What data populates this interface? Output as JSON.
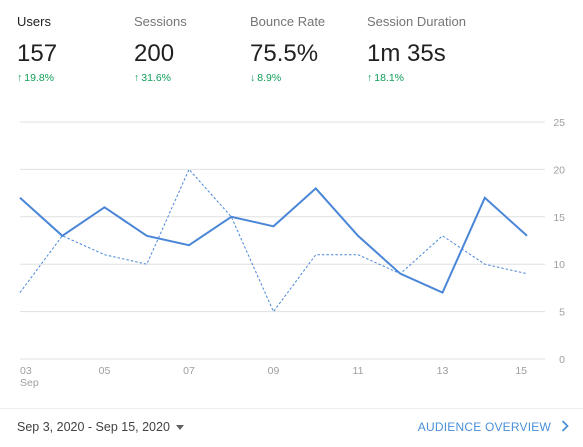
{
  "metrics": [
    {
      "label": "Users",
      "value": "157",
      "change": "19.8%",
      "direction": "up",
      "active": true
    },
    {
      "label": "Sessions",
      "value": "200",
      "change": "31.6%",
      "direction": "up",
      "active": false
    },
    {
      "label": "Bounce Rate",
      "value": "75.5%",
      "change": "8.9%",
      "direction": "down",
      "active": false
    },
    {
      "label": "Session Duration",
      "value": "1m 35s",
      "change": "18.1%",
      "direction": "up",
      "active": false
    }
  ],
  "colors": {
    "series": "#4a86d8",
    "positive": "#0f9d58",
    "link": "#4a90d9",
    "grid": "#e0e0e0"
  },
  "chart_data": {
    "type": "line",
    "x": [
      "03",
      "04",
      "05",
      "06",
      "07",
      "08",
      "09",
      "10",
      "11",
      "12",
      "13",
      "14",
      "15"
    ],
    "x_ticks": [
      {
        "label": "03",
        "sub": "Sep"
      },
      {
        "label": "05",
        "sub": ""
      },
      {
        "label": "07",
        "sub": ""
      },
      {
        "label": "09",
        "sub": ""
      },
      {
        "label": "11",
        "sub": ""
      },
      {
        "label": "13",
        "sub": ""
      },
      {
        "label": "15",
        "sub": ""
      }
    ],
    "y_ticks": [
      "0",
      "5",
      "10",
      "15",
      "20",
      "25"
    ],
    "ylim": [
      0,
      25
    ],
    "grid": true,
    "series": [
      {
        "style": "solid",
        "values": [
          17,
          13,
          16,
          13,
          12,
          15,
          14,
          18,
          13,
          9,
          7,
          17,
          13
        ]
      },
      {
        "style": "dashed",
        "values": [
          7,
          13,
          11,
          10,
          20,
          15,
          5,
          11,
          11,
          9,
          13,
          10,
          9
        ]
      }
    ]
  },
  "footer": {
    "date_range": "Sep 3, 2020 - Sep 15, 2020",
    "overview_link": "AUDIENCE OVERVIEW"
  }
}
